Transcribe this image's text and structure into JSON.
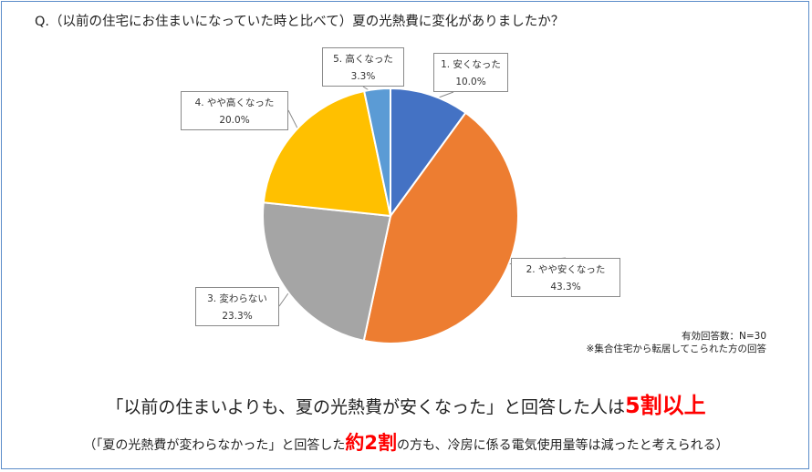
{
  "question": "Q.（以前の住宅にお住まいになっていた時と比べて）夏の光熱費に変化がありましたか？",
  "chart_data": {
    "type": "pie",
    "categories": [
      "1. 安くなった",
      "2. やや安くなった",
      "3. 変わらない",
      "4. やや高くなった",
      "5. 高くなった"
    ],
    "values": [
      10.0,
      43.3,
      23.3,
      20.0,
      3.3
    ],
    "value_labels": [
      "10.0%",
      "43.3%",
      "23.3%",
      "20.0%",
      "3.3%"
    ],
    "colors": [
      "#4472c4",
      "#ed7d31",
      "#a5a5a5",
      "#ffc000",
      "#5b9bd5"
    ],
    "start": "12 o'clock",
    "direction": "clockwise"
  },
  "notes": {
    "sample": "有効回答数：N=30",
    "footnote": "※集合住宅から転居してこられた方の回答"
  },
  "conclusion": {
    "before": "「以前の住まいよりも、夏の光熱費が安くなった」と回答した人は",
    "highlight": "5割以上"
  },
  "sub": {
    "before": "（「夏の光熱費が変わらなかった」と回答した",
    "highlight": "約2割",
    "after": "の方も、冷房に係る電気使用量等は減ったと考えられる）"
  }
}
